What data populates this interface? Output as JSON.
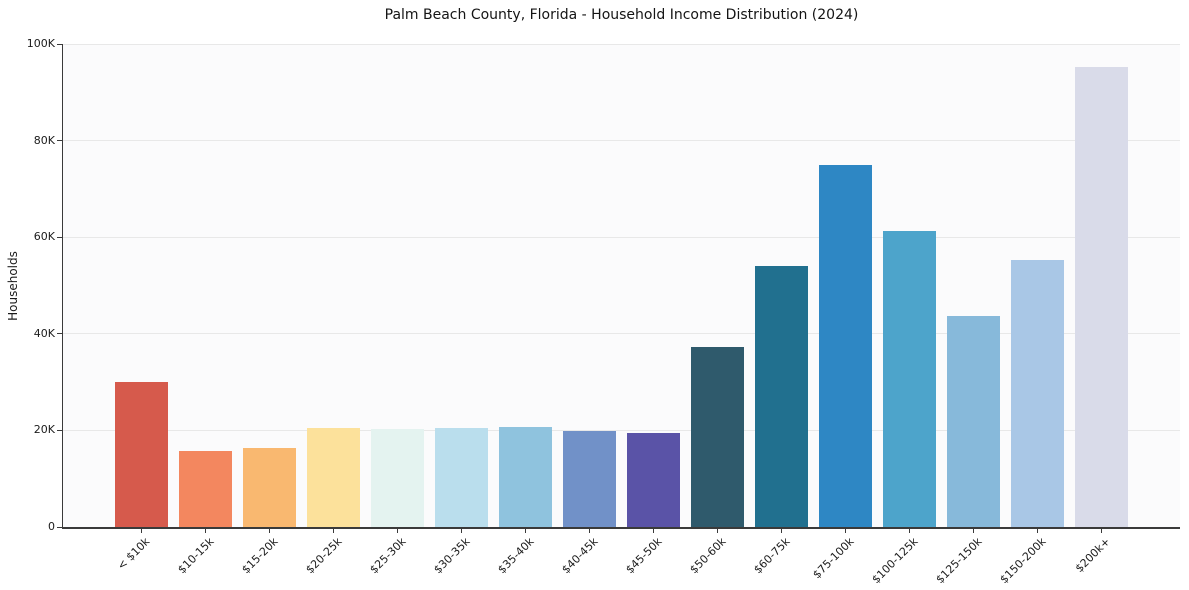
{
  "chart_data": {
    "type": "bar",
    "title": "Palm Beach County, Florida - Household Income Distribution (2024)",
    "xlabel": "",
    "ylabel": "Households",
    "ylim": [
      0,
      100000
    ],
    "grid": true,
    "legend": "none",
    "yticks": [
      {
        "value": 0,
        "label": "0"
      },
      {
        "value": 20000,
        "label": "20K"
      },
      {
        "value": 40000,
        "label": "40K"
      },
      {
        "value": 60000,
        "label": "60K"
      },
      {
        "value": 80000,
        "label": "80K"
      },
      {
        "value": 100000,
        "label": "100K"
      }
    ],
    "categories": [
      "< $10k",
      "$10-15k",
      "$15-20k",
      "$20-25k",
      "$25-30k",
      "$30-35k",
      "$35-40k",
      "$40-45k",
      "$45-50k",
      "$50-60k",
      "$60-75k",
      "$75-100k",
      "$100-125k",
      "$125-150k",
      "$150-200k",
      "$200k+"
    ],
    "values": [
      30000,
      15800,
      16400,
      20600,
      20200,
      20400,
      20700,
      19800,
      19400,
      37300,
      54100,
      75000,
      61200,
      43600,
      55200,
      95200
    ],
    "bar_colors": [
      "#d65a4c",
      "#f3875f",
      "#f9b870",
      "#fce19b",
      "#e4f3f0",
      "#badeed",
      "#8fc3de",
      "#7191c8",
      "#5a53a7",
      "#2f5a6c",
      "#21708f",
      "#2e87c4",
      "#4da4cb",
      "#87b9da",
      "#a9c7e6",
      "#d9dbe9"
    ],
    "style": {
      "figure_background": "#ffffff",
      "plot_background": "#fbfbfc",
      "grid_color": "#e8e8e8",
      "spine_color": "#3a3a3a",
      "text_color": "#1c1c1c"
    }
  }
}
